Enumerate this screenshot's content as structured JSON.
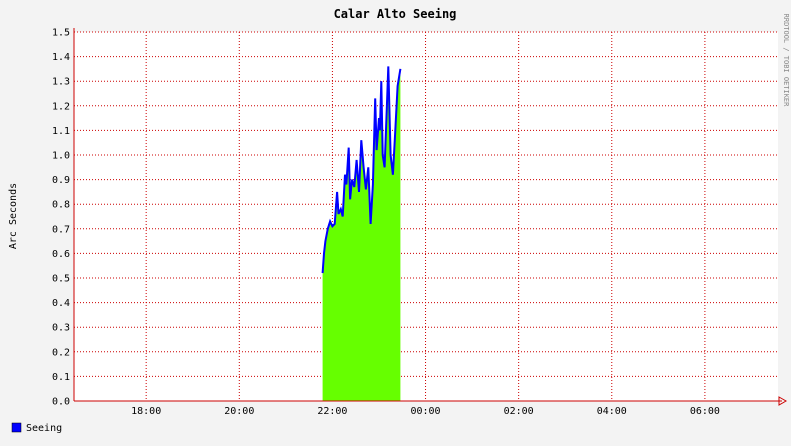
{
  "chart_data": {
    "type": "area",
    "title": "Calar Alto Seeing",
    "ylabel": "Arc Seconds",
    "watermark": "RRDTOOL / TOBI OETIKER",
    "xlim": [
      16.45,
      31.57
    ],
    "ylim": [
      0,
      1.5
    ],
    "xticks": [
      {
        "value": 18,
        "label": "18:00"
      },
      {
        "value": 20,
        "label": "20:00"
      },
      {
        "value": 22,
        "label": "22:00"
      },
      {
        "value": 24,
        "label": "00:00"
      },
      {
        "value": 26,
        "label": "02:00"
      },
      {
        "value": 28,
        "label": "04:00"
      },
      {
        "value": 30,
        "label": "06:00"
      }
    ],
    "yticks": [
      {
        "value": 0,
        "label": "0.0"
      },
      0.1,
      0.2,
      0.3,
      0.4,
      0.5,
      0.6,
      0.7,
      0.8,
      0.9,
      {
        "value": 1,
        "label": "1.0"
      },
      1.1,
      1.2,
      1.3,
      1.4,
      1.5
    ],
    "grid": true,
    "grid_color": "#cc0000",
    "legend": "bottom-left",
    "x": [
      21.79,
      21.82,
      21.85,
      21.9,
      21.95,
      22.0,
      22.05,
      22.1,
      22.13,
      22.18,
      22.22,
      22.27,
      22.3,
      22.35,
      22.38,
      22.42,
      22.47,
      22.52,
      22.57,
      22.62,
      22.67,
      22.72,
      22.77,
      22.82,
      22.87,
      22.92,
      22.95,
      23.0,
      23.02,
      23.05,
      23.08,
      23.12,
      23.17,
      23.2,
      23.25,
      23.3,
      23.35,
      23.4,
      23.46
    ],
    "series": [
      {
        "name": "Seeing",
        "color": "#0000ff",
        "fill": "#66ff00",
        "values": [
          0.52,
          0.6,
          0.65,
          0.7,
          0.73,
          0.71,
          0.72,
          0.85,
          0.76,
          0.78,
          0.75,
          0.92,
          0.88,
          1.03,
          0.82,
          0.9,
          0.87,
          0.98,
          0.85,
          1.06,
          0.95,
          0.86,
          0.95,
          0.72,
          0.88,
          1.23,
          1.02,
          1.15,
          1.1,
          1.3,
          1.0,
          0.95,
          1.2,
          1.36,
          1.0,
          0.92,
          1.1,
          1.28,
          1.35
        ]
      }
    ]
  }
}
